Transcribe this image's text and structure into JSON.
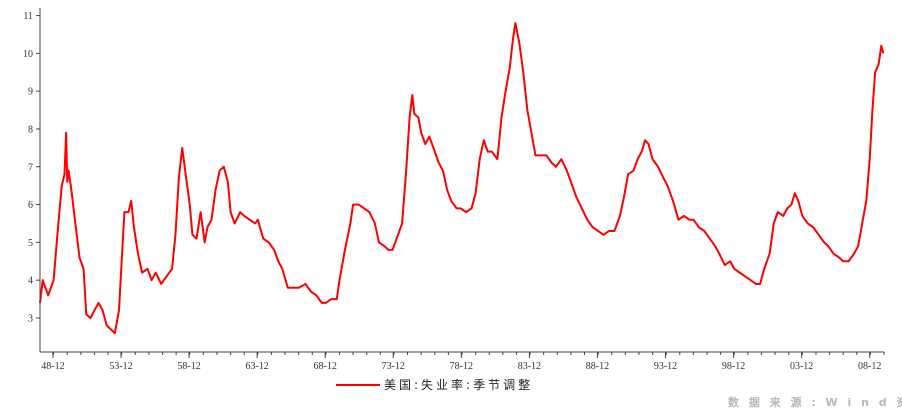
{
  "chart_data": {
    "type": "line",
    "series": [
      {
        "name": "美国:失业率:季节调整",
        "color": "#ff0000",
        "points": [
          [
            1948.0,
            3.4
          ],
          [
            1948.2,
            4.0
          ],
          [
            1948.6,
            3.6
          ],
          [
            1949.0,
            4.0
          ],
          [
            1949.3,
            5.3
          ],
          [
            1949.6,
            6.5
          ],
          [
            1949.8,
            6.8
          ],
          [
            1949.92,
            7.9
          ],
          [
            1950.0,
            6.6
          ],
          [
            1950.1,
            6.9
          ],
          [
            1950.3,
            6.4
          ],
          [
            1950.6,
            5.5
          ],
          [
            1950.9,
            4.6
          ],
          [
            1951.2,
            4.3
          ],
          [
            1951.4,
            3.1
          ],
          [
            1951.7,
            3.0
          ],
          [
            1952.0,
            3.2
          ],
          [
            1952.3,
            3.4
          ],
          [
            1952.6,
            3.2
          ],
          [
            1952.9,
            2.8
          ],
          [
            1953.2,
            2.7
          ],
          [
            1953.5,
            2.6
          ],
          [
            1953.8,
            3.2
          ],
          [
            1954.0,
            4.5
          ],
          [
            1954.2,
            5.8
          ],
          [
            1954.5,
            5.8
          ],
          [
            1954.7,
            6.1
          ],
          [
            1954.9,
            5.4
          ],
          [
            1955.2,
            4.7
          ],
          [
            1955.5,
            4.2
          ],
          [
            1955.9,
            4.3
          ],
          [
            1956.2,
            4.0
          ],
          [
            1956.5,
            4.2
          ],
          [
            1956.9,
            3.9
          ],
          [
            1957.3,
            4.1
          ],
          [
            1957.7,
            4.3
          ],
          [
            1957.95,
            5.2
          ],
          [
            1958.2,
            6.7
          ],
          [
            1958.45,
            7.5
          ],
          [
            1958.7,
            6.8
          ],
          [
            1959.0,
            6.0
          ],
          [
            1959.2,
            5.2
          ],
          [
            1959.5,
            5.1
          ],
          [
            1959.8,
            5.8
          ],
          [
            1960.1,
            5.0
          ],
          [
            1960.3,
            5.4
          ],
          [
            1960.6,
            5.6
          ],
          [
            1960.9,
            6.4
          ],
          [
            1961.2,
            6.9
          ],
          [
            1961.5,
            7.0
          ],
          [
            1961.8,
            6.6
          ],
          [
            1962.0,
            5.8
          ],
          [
            1962.3,
            5.5
          ],
          [
            1962.7,
            5.8
          ],
          [
            1963.0,
            5.7
          ],
          [
            1963.4,
            5.6
          ],
          [
            1963.8,
            5.5
          ],
          [
            1964.0,
            5.6
          ],
          [
            1964.4,
            5.1
          ],
          [
            1964.8,
            5.0
          ],
          [
            1965.2,
            4.8
          ],
          [
            1965.5,
            4.5
          ],
          [
            1965.8,
            4.3
          ],
          [
            1966.2,
            3.8
          ],
          [
            1966.6,
            3.8
          ],
          [
            1967.0,
            3.8
          ],
          [
            1967.5,
            3.9
          ],
          [
            1967.9,
            3.7
          ],
          [
            1968.3,
            3.6
          ],
          [
            1968.7,
            3.4
          ],
          [
            1969.0,
            3.4
          ],
          [
            1969.4,
            3.5
          ],
          [
            1969.8,
            3.5
          ],
          [
            1970.0,
            4.0
          ],
          [
            1970.4,
            4.8
          ],
          [
            1970.8,
            5.5
          ],
          [
            1971.0,
            6.0
          ],
          [
            1971.4,
            6.0
          ],
          [
            1971.8,
            5.9
          ],
          [
            1972.2,
            5.8
          ],
          [
            1972.6,
            5.5
          ],
          [
            1972.9,
            5.0
          ],
          [
            1973.3,
            4.9
          ],
          [
            1973.6,
            4.8
          ],
          [
            1973.9,
            4.8
          ],
          [
            1974.2,
            5.1
          ],
          [
            1974.6,
            5.5
          ],
          [
            1974.9,
            6.9
          ],
          [
            1975.15,
            8.3
          ],
          [
            1975.35,
            8.9
          ],
          [
            1975.5,
            8.4
          ],
          [
            1975.8,
            8.3
          ],
          [
            1976.0,
            7.9
          ],
          [
            1976.3,
            7.6
          ],
          [
            1976.6,
            7.8
          ],
          [
            1977.0,
            7.4
          ],
          [
            1977.3,
            7.1
          ],
          [
            1977.6,
            6.9
          ],
          [
            1977.9,
            6.4
          ],
          [
            1978.2,
            6.1
          ],
          [
            1978.6,
            5.9
          ],
          [
            1978.9,
            5.9
          ],
          [
            1979.3,
            5.8
          ],
          [
            1979.7,
            5.9
          ],
          [
            1980.0,
            6.3
          ],
          [
            1980.3,
            7.2
          ],
          [
            1980.6,
            7.7
          ],
          [
            1980.9,
            7.4
          ],
          [
            1981.2,
            7.4
          ],
          [
            1981.6,
            7.2
          ],
          [
            1981.9,
            8.3
          ],
          [
            1982.2,
            9.0
          ],
          [
            1982.5,
            9.6
          ],
          [
            1982.75,
            10.4
          ],
          [
            1982.92,
            10.8
          ],
          [
            1983.2,
            10.3
          ],
          [
            1983.5,
            9.5
          ],
          [
            1983.8,
            8.5
          ],
          [
            1984.1,
            7.9
          ],
          [
            1984.4,
            7.3
          ],
          [
            1984.8,
            7.3
          ],
          [
            1985.2,
            7.3
          ],
          [
            1985.6,
            7.1
          ],
          [
            1985.9,
            7.0
          ],
          [
            1986.3,
            7.2
          ],
          [
            1986.7,
            6.9
          ],
          [
            1987.0,
            6.6
          ],
          [
            1987.4,
            6.2
          ],
          [
            1987.8,
            5.9
          ],
          [
            1988.2,
            5.6
          ],
          [
            1988.6,
            5.4
          ],
          [
            1989.0,
            5.3
          ],
          [
            1989.4,
            5.2
          ],
          [
            1989.8,
            5.3
          ],
          [
            1990.2,
            5.3
          ],
          [
            1990.6,
            5.7
          ],
          [
            1990.9,
            6.2
          ],
          [
            1991.2,
            6.8
          ],
          [
            1991.6,
            6.9
          ],
          [
            1991.9,
            7.2
          ],
          [
            1992.2,
            7.4
          ],
          [
            1992.45,
            7.7
          ],
          [
            1992.7,
            7.6
          ],
          [
            1993.0,
            7.2
          ],
          [
            1993.4,
            7.0
          ],
          [
            1993.8,
            6.7
          ],
          [
            1994.1,
            6.5
          ],
          [
            1994.5,
            6.1
          ],
          [
            1994.9,
            5.6
          ],
          [
            1995.3,
            5.7
          ],
          [
            1995.7,
            5.6
          ],
          [
            1996.0,
            5.6
          ],
          [
            1996.4,
            5.4
          ],
          [
            1996.8,
            5.3
          ],
          [
            1997.2,
            5.1
          ],
          [
            1997.6,
            4.9
          ],
          [
            1997.9,
            4.7
          ],
          [
            1998.3,
            4.4
          ],
          [
            1998.7,
            4.5
          ],
          [
            1999.0,
            4.3
          ],
          [
            1999.4,
            4.2
          ],
          [
            1999.8,
            4.1
          ],
          [
            2000.2,
            4.0
          ],
          [
            2000.6,
            3.9
          ],
          [
            2000.9,
            3.9
          ],
          [
            2001.2,
            4.3
          ],
          [
            2001.6,
            4.7
          ],
          [
            2001.9,
            5.5
          ],
          [
            2002.2,
            5.8
          ],
          [
            2002.6,
            5.7
          ],
          [
            2002.9,
            5.9
          ],
          [
            2003.2,
            6.0
          ],
          [
            2003.45,
            6.3
          ],
          [
            2003.7,
            6.1
          ],
          [
            2004.0,
            5.7
          ],
          [
            2004.4,
            5.5
          ],
          [
            2004.8,
            5.4
          ],
          [
            2005.2,
            5.2
          ],
          [
            2005.6,
            5.0
          ],
          [
            2005.9,
            4.9
          ],
          [
            2006.3,
            4.7
          ],
          [
            2006.7,
            4.6
          ],
          [
            2007.0,
            4.5
          ],
          [
            2007.4,
            4.5
          ],
          [
            2007.8,
            4.7
          ],
          [
            2008.1,
            4.9
          ],
          [
            2008.4,
            5.5
          ],
          [
            2008.7,
            6.1
          ],
          [
            2008.95,
            7.2
          ],
          [
            2009.15,
            8.5
          ],
          [
            2009.35,
            9.5
          ],
          [
            2009.6,
            9.7
          ],
          [
            2009.8,
            10.2
          ],
          [
            2009.95,
            10.0
          ]
        ]
      }
    ],
    "y_ticks": [
      3,
      4,
      5,
      6,
      7,
      8,
      9,
      10,
      11
    ],
    "x_tick_labels": [
      "48-12",
      "53-12",
      "58-12",
      "63-12",
      "68-12",
      "73-12",
      "78-12",
      "83-12",
      "88-12",
      "93-12",
      "98-12",
      "03-12",
      "08-12"
    ],
    "ylim": [
      2.1,
      11.2
    ],
    "xlim": [
      1948.0,
      2010.0
    ],
    "grid": false,
    "legend_position": "bottom-center"
  },
  "source_note": "数 据 来 源 : W i n d 资 讯"
}
